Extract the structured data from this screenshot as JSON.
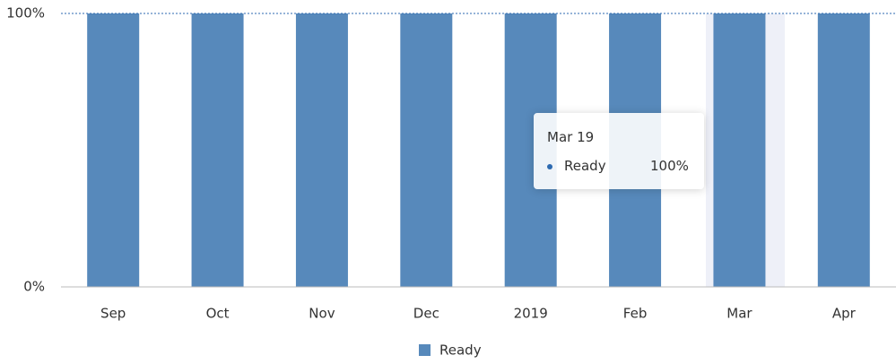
{
  "chart_data": {
    "type": "bar",
    "categories": [
      "Sep",
      "Oct",
      "Nov",
      "Dec",
      "2019",
      "Feb",
      "Mar",
      "Apr"
    ],
    "series": [
      {
        "name": "Ready",
        "color": "#5789bb",
        "values": [
          100,
          100,
          100,
          100,
          100,
          100,
          100,
          100
        ]
      }
    ],
    "ylim": [
      0,
      100
    ],
    "yticks": [
      {
        "value": 0,
        "label": "0%"
      },
      {
        "value": 100,
        "label": "100%"
      }
    ],
    "legend": "bottom",
    "tooltip": {
      "title": "Mar 19",
      "value": 100,
      "value_label": "100%"
    }
  }
}
